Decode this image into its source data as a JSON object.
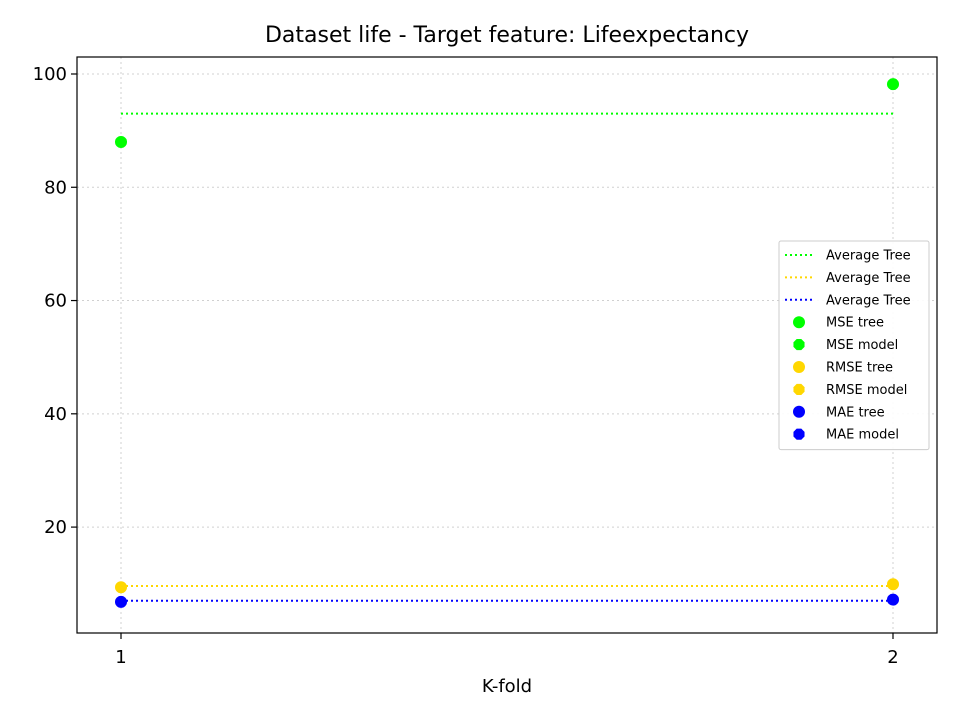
{
  "chart_data": {
    "type": "scatter",
    "title": "Dataset life - Target feature: Lifeexpectancy",
    "xlabel": "K-fold",
    "ylabel": "",
    "x": [
      1,
      2
    ],
    "xlim": [
      0.943,
      2.057
    ],
    "ylim": [
      1.3,
      103
    ],
    "xticks": [
      "1",
      "2"
    ],
    "yticks": [
      20,
      40,
      60,
      80,
      100
    ],
    "grid": true,
    "legend_position": "center-right",
    "averages": [
      {
        "name": "Average Tree",
        "value": 93.0,
        "color": "#00ff00"
      },
      {
        "name": "Average Tree",
        "value": 9.6,
        "color": "#ffd700"
      },
      {
        "name": "Average Tree",
        "value": 7.0,
        "color": "#0000ff"
      }
    ],
    "series": [
      {
        "name": "MSE tree",
        "values": [
          88.0,
          98.2
        ],
        "color": "#00ff00",
        "marker": "circle"
      },
      {
        "name": "MSE model",
        "values": [
          88.0,
          98.2
        ],
        "color": "#00ff00",
        "marker": "octagon"
      },
      {
        "name": "RMSE tree",
        "values": [
          9.38,
          9.91
        ],
        "color": "#ffd700",
        "marker": "circle"
      },
      {
        "name": "RMSE model",
        "values": [
          9.38,
          9.91
        ],
        "color": "#ffd700",
        "marker": "octagon"
      },
      {
        "name": "MAE tree",
        "values": [
          6.8,
          7.2
        ],
        "color": "#0000ff",
        "marker": "circle"
      },
      {
        "name": "MAE model",
        "values": [
          6.8,
          7.2
        ],
        "color": "#0000ff",
        "marker": "octagon"
      }
    ]
  }
}
